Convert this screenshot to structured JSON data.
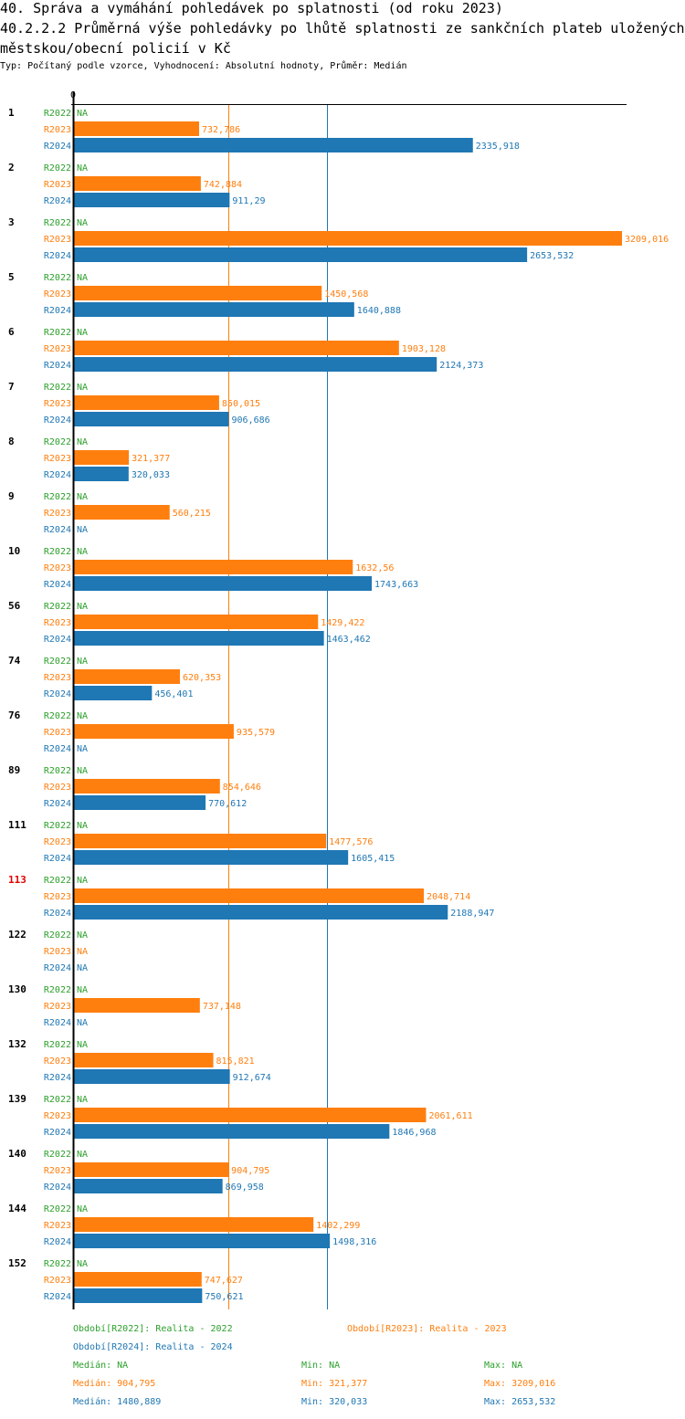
{
  "header": {
    "title": "40. Správa a vymáhání pohledávek po splatnosti (od roku 2023)",
    "subtitle_main": "40.2.2.2 Průměrná výše pohledávky po lhůtě splatnosti ze sankčních plateb uložených městskou/obecní policií v Kč",
    "meta": "Typ: Počítaný podle vzorce, Vyhodnocení: Absolutní hodnoty, Průměr: Medián"
  },
  "colors": {
    "R2022": "#2ca02c",
    "R2023": "#ff7f0e",
    "R2024": "#1f77b4",
    "highlight": "#e00000"
  },
  "chart_data": {
    "type": "bar",
    "orientation": "horizontal",
    "title": "40.2.2.2 Průměrná výše pohledávky po lhůtě splatnosti ze sankčních plateb uložených městskou/obecní policií v Kč",
    "xlabel": "",
    "ylabel": "",
    "x_tick_labels": [
      "0"
    ],
    "xlim": [
      0,
      3209.016
    ],
    "grid": false,
    "legend_position": "bottom",
    "na_label": "NA",
    "highlighted_category": "113",
    "categories": [
      "1",
      "2",
      "3",
      "5",
      "6",
      "7",
      "8",
      "9",
      "10",
      "56",
      "74",
      "76",
      "89",
      "111",
      "113",
      "122",
      "130",
      "132",
      "139",
      "140",
      "144",
      "152"
    ],
    "series": [
      {
        "name": "R2022",
        "legend": "Období[R2022]: Realita - 2022",
        "values": [
          null,
          null,
          null,
          null,
          null,
          null,
          null,
          null,
          null,
          null,
          null,
          null,
          null,
          null,
          null,
          null,
          null,
          null,
          null,
          null,
          null,
          null
        ],
        "labels": [
          "NA",
          "NA",
          "NA",
          "NA",
          "NA",
          "NA",
          "NA",
          "NA",
          "NA",
          "NA",
          "NA",
          "NA",
          "NA",
          "NA",
          "NA",
          "NA",
          "NA",
          "NA",
          "NA",
          "NA",
          "NA",
          "NA"
        ],
        "median": null,
        "median_label": "Medián: NA",
        "min_label": "Min: NA",
        "max_label": "Max: NA"
      },
      {
        "name": "R2023",
        "legend": "Období[R2023]: Realita - 2023",
        "values": [
          732.786,
          742.884,
          3209.016,
          1450.568,
          1903.128,
          850.015,
          321.377,
          560.215,
          1632.56,
          1429.422,
          620.353,
          935.579,
          854.646,
          1477.576,
          2048.714,
          null,
          737.148,
          815.821,
          2061.611,
          904.795,
          1402.299,
          747.627
        ],
        "labels": [
          "732,786",
          "742,884",
          "3209,016",
          "1450,568",
          "1903,128",
          "850,015",
          "321,377",
          "560,215",
          "1632,56",
          "1429,422",
          "620,353",
          "935,579",
          "854,646",
          "1477,576",
          "2048,714",
          "NA",
          "737,148",
          "815,821",
          "2061,611",
          "904,795",
          "1402,299",
          "747,627"
        ],
        "median": 904.795,
        "median_label": "Medián: 904,795",
        "min_label": "Min: 321,377",
        "max_label": "Max: 3209,016"
      },
      {
        "name": "R2024",
        "legend": "Období[R2024]: Realita - 2024",
        "values": [
          2335.918,
          911.29,
          2653.532,
          1640.888,
          2124.373,
          906.686,
          320.033,
          null,
          1743.663,
          1463.462,
          456.401,
          null,
          770.612,
          1605.415,
          2188.947,
          null,
          null,
          912.674,
          1846.968,
          869.958,
          1498.316,
          750.621
        ],
        "labels": [
          "2335,918",
          "911,29",
          "2653,532",
          "1640,888",
          "2124,373",
          "906,686",
          "320,033",
          "NA",
          "1743,663",
          "1463,462",
          "456,401",
          "NA",
          "770,612",
          "1605,415",
          "2188,947",
          "NA",
          "NA",
          "912,674",
          "1846,968",
          "869,958",
          "1498,316",
          "750,621"
        ],
        "median": 1480.889,
        "median_label": "Medián: 1480,889",
        "min_label": "Min: 320,033",
        "max_label": "Max: 2653,532"
      }
    ]
  }
}
